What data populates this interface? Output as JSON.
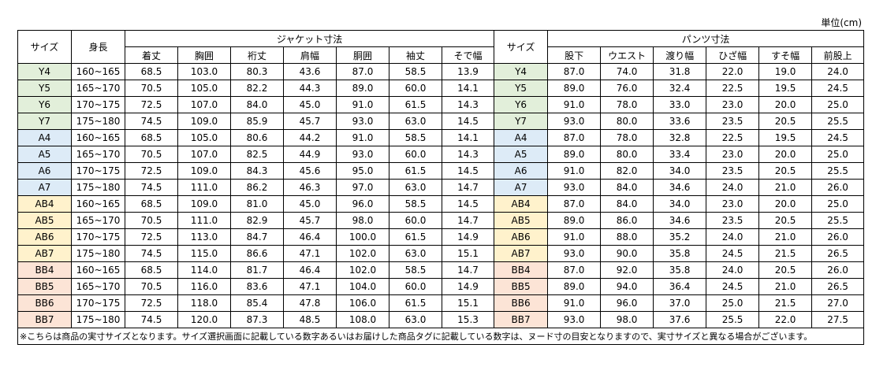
{
  "unit": "単位(cm)",
  "table": {
    "header": {
      "size": "サイズ",
      "height": "身長",
      "jacket": "ジャケット寸法",
      "pants_size": "サイズ",
      "pants": "パンツ寸法",
      "jacket_cols": [
        "着丈",
        "胸囲",
        "裄丈",
        "肩幅",
        "胴囲",
        "袖丈",
        "そで幅"
      ],
      "pants_cols": [
        "股下",
        "ウエスト",
        "渡り幅",
        "ひざ幅",
        "すそ幅",
        "前股上"
      ]
    },
    "groups": [
      {
        "color": "#e2efda",
        "rows": [
          [
            "Y4",
            "160~165",
            "68.5",
            "103.0",
            "80.3",
            "43.6",
            "87.0",
            "58.5",
            "13.9",
            "Y4",
            "87.0",
            "74.0",
            "31.8",
            "22.0",
            "19.0",
            "24.0"
          ],
          [
            "Y5",
            "165~170",
            "70.5",
            "105.0",
            "82.2",
            "44.3",
            "89.0",
            "60.0",
            "14.1",
            "Y5",
            "89.0",
            "76.0",
            "32.4",
            "22.5",
            "19.5",
            "24.5"
          ],
          [
            "Y6",
            "170~175",
            "72.5",
            "107.0",
            "84.0",
            "45.0",
            "91.0",
            "61.5",
            "14.3",
            "Y6",
            "91.0",
            "78.0",
            "33.0",
            "23.0",
            "20.0",
            "25.0"
          ],
          [
            "Y7",
            "175~180",
            "74.5",
            "109.0",
            "85.9",
            "45.7",
            "93.0",
            "63.0",
            "14.5",
            "Y7",
            "93.0",
            "80.0",
            "33.6",
            "23.5",
            "20.5",
            "25.5"
          ]
        ]
      },
      {
        "color": "#ddebf7",
        "rows": [
          [
            "A4",
            "160~165",
            "68.5",
            "105.0",
            "80.6",
            "44.2",
            "91.0",
            "58.5",
            "14.1",
            "A4",
            "87.0",
            "78.0",
            "32.8",
            "22.5",
            "19.5",
            "24.5"
          ],
          [
            "A5",
            "165~170",
            "70.5",
            "107.0",
            "82.5",
            "44.9",
            "93.0",
            "60.0",
            "14.3",
            "A5",
            "89.0",
            "80.0",
            "33.4",
            "23.0",
            "20.0",
            "25.0"
          ],
          [
            "A6",
            "170~175",
            "72.5",
            "109.0",
            "84.3",
            "45.6",
            "95.0",
            "61.5",
            "14.5",
            "A6",
            "91.0",
            "82.0",
            "34.0",
            "23.5",
            "20.5",
            "25.5"
          ],
          [
            "A7",
            "175~180",
            "74.5",
            "111.0",
            "86.2",
            "46.3",
            "97.0",
            "63.0",
            "14.7",
            "A7",
            "93.0",
            "84.0",
            "34.6",
            "24.0",
            "21.0",
            "26.0"
          ]
        ]
      },
      {
        "color": "#fff2cc",
        "rows": [
          [
            "AB4",
            "160~165",
            "68.5",
            "109.0",
            "81.0",
            "45.0",
            "96.0",
            "58.5",
            "14.5",
            "AB4",
            "87.0",
            "84.0",
            "34.0",
            "23.0",
            "20.0",
            "25.0"
          ],
          [
            "AB5",
            "165~170",
            "70.5",
            "111.0",
            "82.9",
            "45.7",
            "98.0",
            "60.0",
            "14.7",
            "AB5",
            "89.0",
            "86.0",
            "34.6",
            "23.5",
            "20.5",
            "25.5"
          ],
          [
            "AB6",
            "170~175",
            "72.5",
            "113.0",
            "84.7",
            "46.4",
            "100.0",
            "61.5",
            "14.9",
            "AB6",
            "91.0",
            "88.0",
            "35.2",
            "24.0",
            "21.0",
            "26.0"
          ],
          [
            "AB7",
            "175~180",
            "74.5",
            "115.0",
            "86.6",
            "47.1",
            "102.0",
            "63.0",
            "15.1",
            "AB7",
            "93.0",
            "90.0",
            "35.8",
            "24.5",
            "21.5",
            "26.5"
          ]
        ]
      },
      {
        "color": "#fce4d6",
        "rows": [
          [
            "BB4",
            "160~165",
            "68.5",
            "114.0",
            "81.7",
            "46.4",
            "102.0",
            "58.5",
            "14.7",
            "BB4",
            "87.0",
            "92.0",
            "35.8",
            "24.0",
            "20.5",
            "26.0"
          ],
          [
            "BB5",
            "165~170",
            "70.5",
            "116.0",
            "83.6",
            "47.1",
            "104.0",
            "60.0",
            "14.9",
            "BB5",
            "89.0",
            "94.0",
            "36.4",
            "24.5",
            "21.0",
            "26.5"
          ],
          [
            "BB6",
            "170~175",
            "72.5",
            "118.0",
            "85.4",
            "47.8",
            "106.0",
            "61.5",
            "15.1",
            "BB6",
            "91.0",
            "96.0",
            "37.0",
            "25.0",
            "21.5",
            "27.0"
          ],
          [
            "BB7",
            "175~180",
            "74.5",
            "120.0",
            "87.3",
            "48.5",
            "108.0",
            "63.0",
            "15.3",
            "BB7",
            "93.0",
            "98.0",
            "37.6",
            "25.5",
            "22.0",
            "27.5"
          ]
        ]
      }
    ],
    "note": "※こちらは商品の実寸サイズとなります。サイズ選択画面に記載している数字あるいはお届けした商品タグに記載している数字は、ヌード寸の目安となりますので、実寸サイズと異なる場合がございます。"
  }
}
